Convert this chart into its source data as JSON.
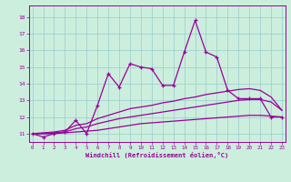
{
  "xlabel": "Windchill (Refroidissement éolien,°C)",
  "background_color": "#cceedd",
  "line_color": "#990099",
  "grid_color": "#99cccc",
  "x_ticks": [
    0,
    1,
    2,
    3,
    4,
    5,
    6,
    7,
    8,
    9,
    10,
    11,
    12,
    13,
    14,
    15,
    16,
    17,
    18,
    19,
    20,
    21,
    22,
    23
  ],
  "y_ticks": [
    11,
    12,
    13,
    14,
    15,
    16,
    17,
    18
  ],
  "ylim": [
    10.5,
    18.7
  ],
  "xlim": [
    -0.3,
    23.3
  ],
  "main_y": [
    11.0,
    10.8,
    11.0,
    11.1,
    11.8,
    11.0,
    12.7,
    14.6,
    13.8,
    15.2,
    15.0,
    14.9,
    13.9,
    13.9,
    15.9,
    17.8,
    15.9,
    15.6,
    13.6,
    13.1,
    13.1,
    13.1,
    12.0,
    12.0
  ],
  "trend_top_y": [
    11.0,
    11.05,
    11.1,
    11.2,
    11.5,
    11.6,
    11.9,
    12.1,
    12.3,
    12.5,
    12.6,
    12.7,
    12.85,
    12.95,
    13.1,
    13.2,
    13.35,
    13.45,
    13.55,
    13.65,
    13.7,
    13.6,
    13.2,
    12.4
  ],
  "trend_mid_y": [
    11.0,
    11.0,
    11.05,
    11.1,
    11.3,
    11.4,
    11.6,
    11.75,
    11.9,
    12.0,
    12.1,
    12.2,
    12.3,
    12.4,
    12.5,
    12.6,
    12.7,
    12.8,
    12.9,
    13.0,
    13.05,
    13.05,
    12.9,
    12.4
  ],
  "trend_bot_y": [
    11.0,
    11.0,
    11.0,
    11.05,
    11.1,
    11.15,
    11.2,
    11.3,
    11.4,
    11.5,
    11.6,
    11.65,
    11.7,
    11.75,
    11.8,
    11.85,
    11.9,
    11.95,
    12.0,
    12.05,
    12.1,
    12.1,
    12.05,
    12.0
  ]
}
